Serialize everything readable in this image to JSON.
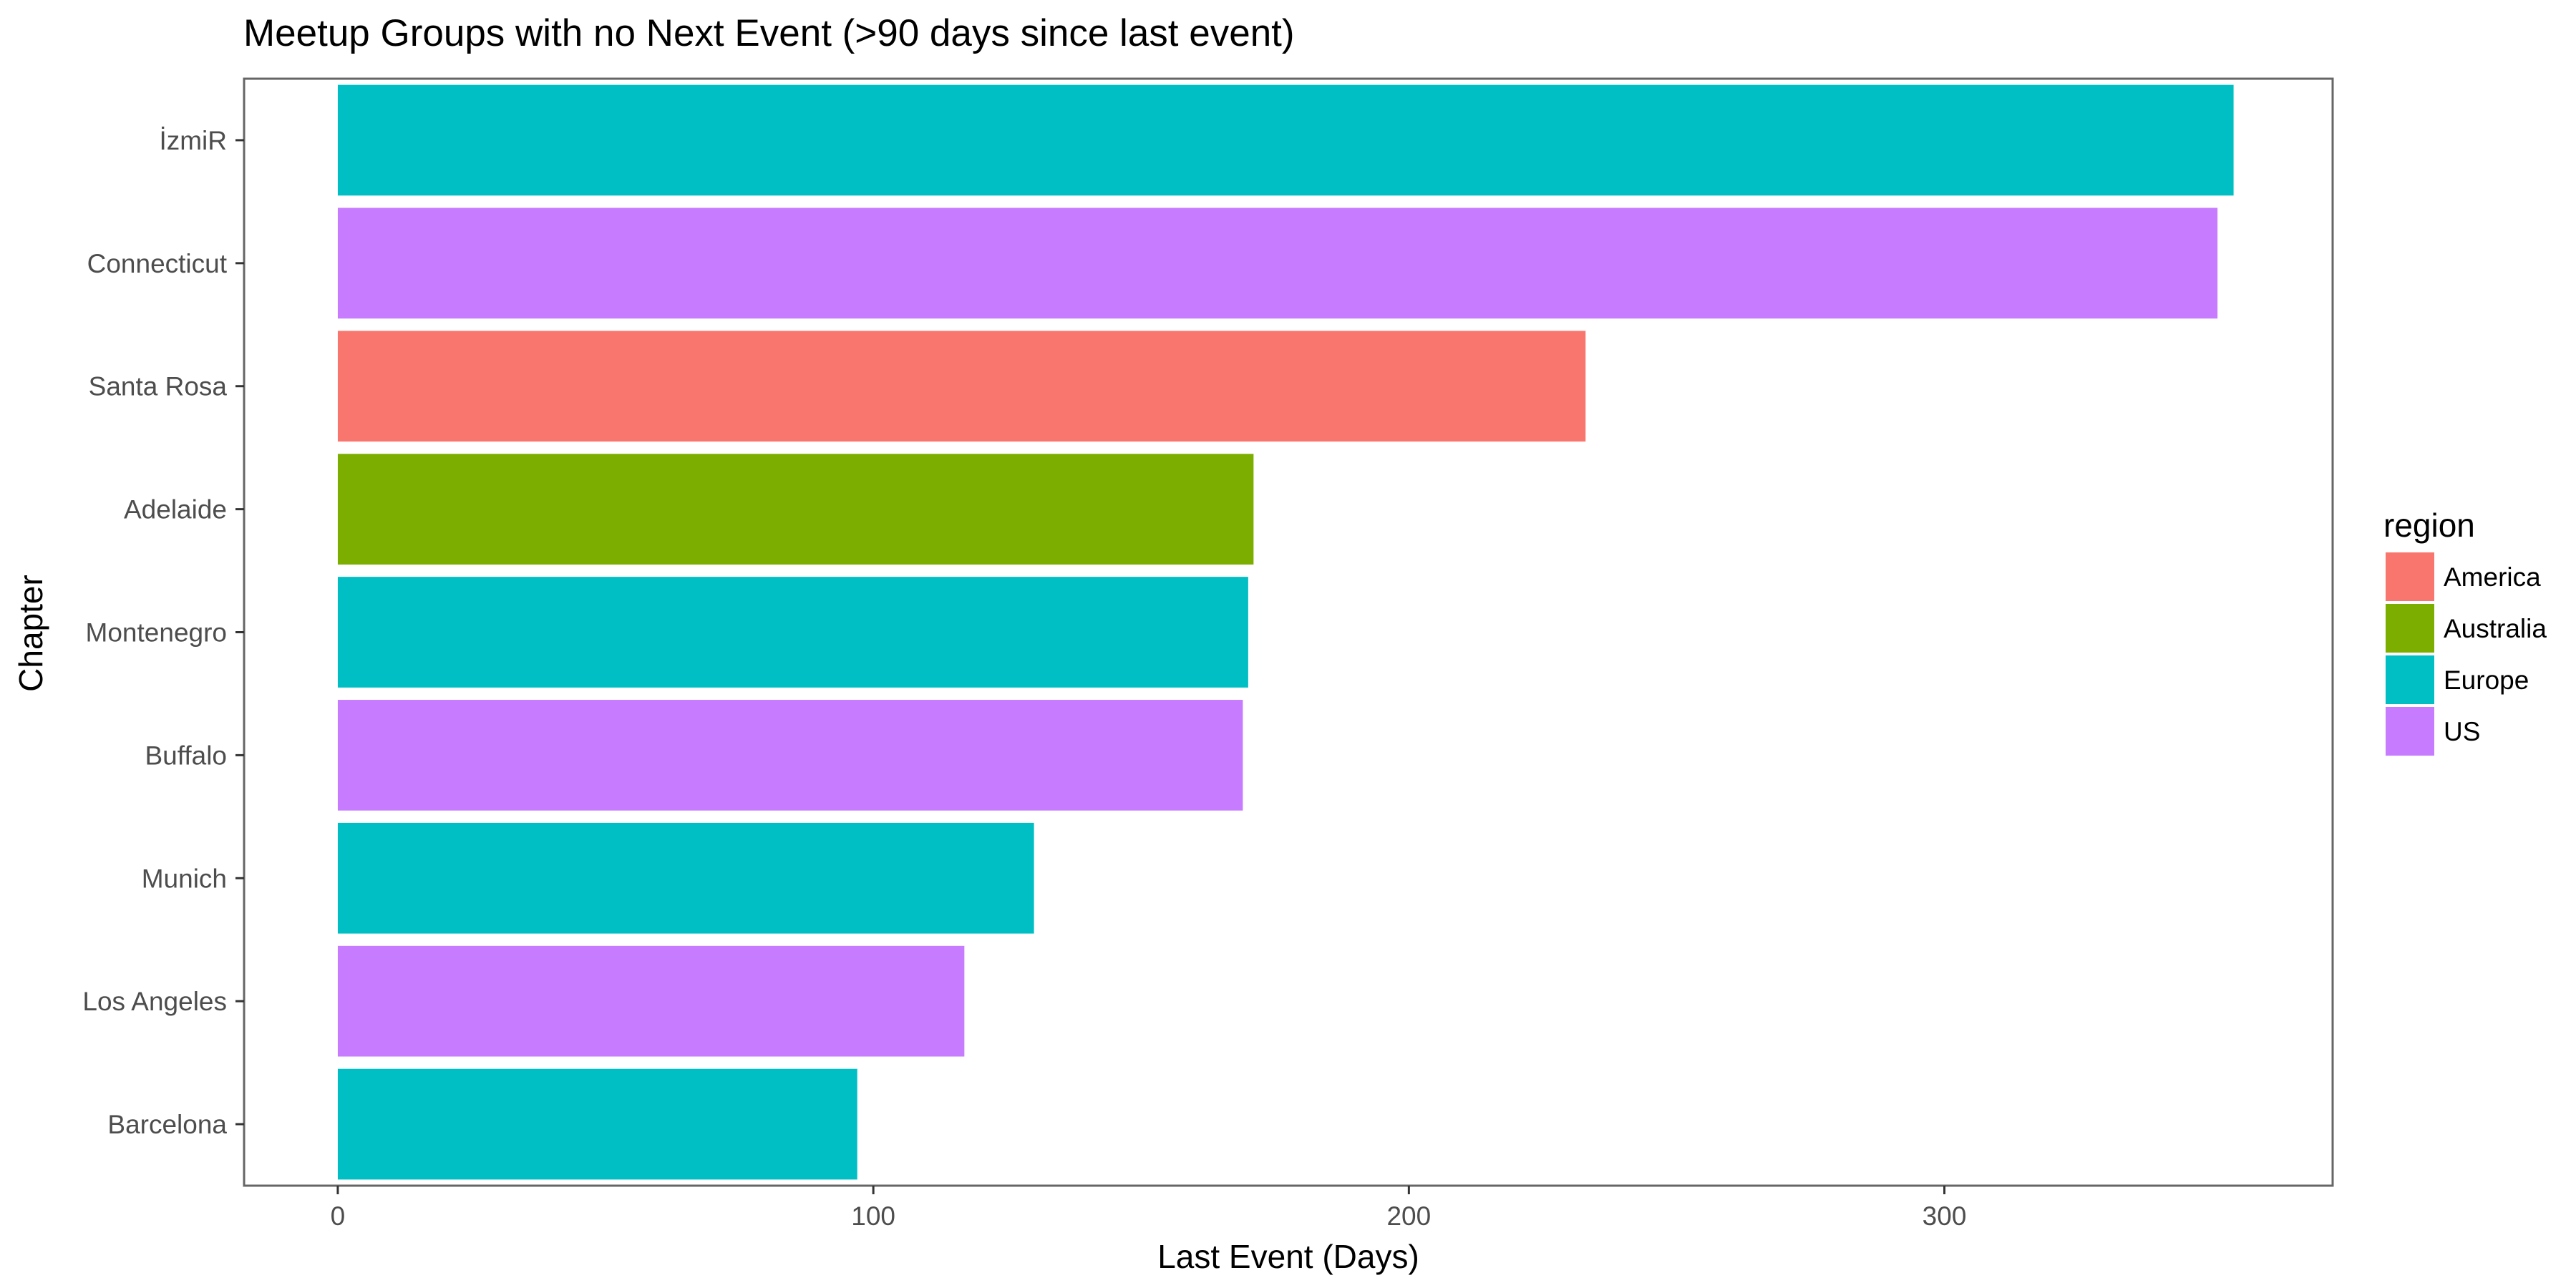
{
  "chart_data": {
    "type": "bar",
    "orientation": "horizontal",
    "title": "Meetup Groups with no Next Event (>90 days since last event)",
    "xlabel": "Last Event (Days)",
    "ylabel": "Chapter",
    "xlim": [
      -17.5,
      372.5
    ],
    "xticks": [
      0,
      100,
      200,
      300
    ],
    "xtick_labels": [
      "0",
      "100",
      "200",
      "300"
    ],
    "grid": false,
    "categories": [
      "İzmiR",
      "Connecticut",
      "Santa Rosa",
      "Adelaide",
      "Montenegro",
      "Buffalo",
      "Munich",
      "Los Angeles",
      "Barcelona"
    ],
    "values": [
      354,
      351,
      233,
      171,
      170,
      169,
      130,
      117,
      97
    ],
    "regions": [
      "Europe",
      "US",
      "America",
      "Australia",
      "Europe",
      "US",
      "Europe",
      "US",
      "Europe"
    ],
    "legend": {
      "title": "region",
      "position": "right",
      "entries": [
        {
          "name": "America",
          "color": "#F8766D"
        },
        {
          "name": "Australia",
          "color": "#7CAE00"
        },
        {
          "name": "Europe",
          "color": "#00BFC4"
        },
        {
          "name": "US",
          "color": "#C77CFF"
        }
      ]
    }
  }
}
